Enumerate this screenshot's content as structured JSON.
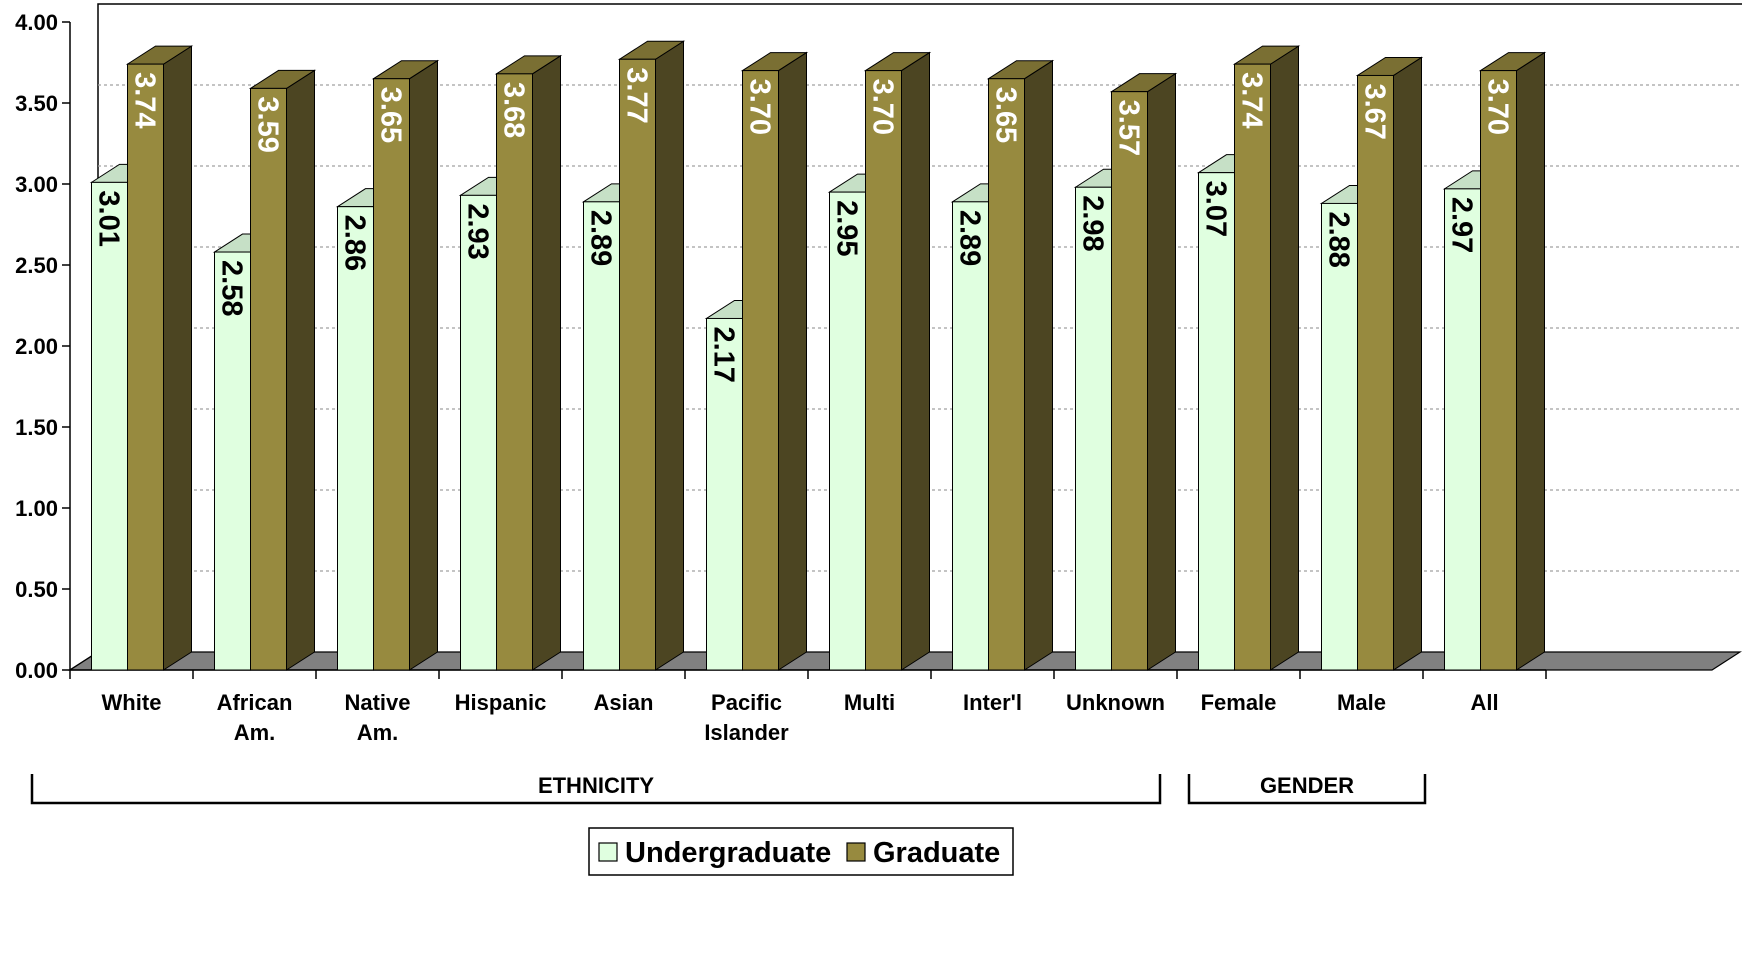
{
  "chart_data": {
    "type": "bar",
    "categories": [
      [
        "White"
      ],
      [
        "African",
        "Am."
      ],
      [
        "Native",
        "Am."
      ],
      [
        "Hispanic"
      ],
      [
        "Asian"
      ],
      [
        "Pacific",
        "Islander"
      ],
      [
        "Multi"
      ],
      [
        "Inter'l"
      ],
      [
        "Unknown"
      ],
      [
        "Female"
      ],
      [
        "Male"
      ],
      [
        "All"
      ]
    ],
    "series": [
      {
        "name": "Undergraduate",
        "values": [
          3.01,
          2.58,
          2.86,
          2.93,
          2.89,
          2.17,
          2.95,
          2.89,
          2.98,
          3.07,
          2.88,
          2.97
        ],
        "labels": [
          "3.01",
          "2.58",
          "2.86",
          "2.93",
          "2.89",
          "2.17",
          "2.95",
          "2.89",
          "2.98",
          "3.07",
          "2.88",
          "2.97"
        ],
        "color": "#e0ffe0",
        "side_color": "#b2c8b2",
        "top_color": "#c6e0c6",
        "label_color": "#000000"
      },
      {
        "name": "Graduate",
        "values": [
          3.74,
          3.59,
          3.65,
          3.68,
          3.77,
          3.7,
          3.7,
          3.65,
          3.57,
          3.74,
          3.67,
          3.7
        ],
        "labels": [
          "3.74",
          "3.59",
          "3.65",
          "3.68",
          "3.77",
          "3.70",
          "3.70",
          "3.65",
          "3.57",
          "3.74",
          "3.67",
          "3.70"
        ],
        "color": "#978a3f",
        "side_color": "#4c4522",
        "top_color": "#7a6f33",
        "label_color": "#ffffff"
      }
    ],
    "y_ticks": [
      "0.00",
      "0.50",
      "1.00",
      "1.50",
      "2.00",
      "2.50",
      "3.00",
      "3.50",
      "4.00"
    ],
    "ylim": [
      0,
      4
    ],
    "grid": true,
    "groups": [
      {
        "label": "ETHNICITY",
        "from": 0,
        "to": 8
      },
      {
        "label": "GENDER",
        "from": 9,
        "to": 10
      }
    ],
    "legend_position": "bottom",
    "floor_color": "#808080"
  }
}
